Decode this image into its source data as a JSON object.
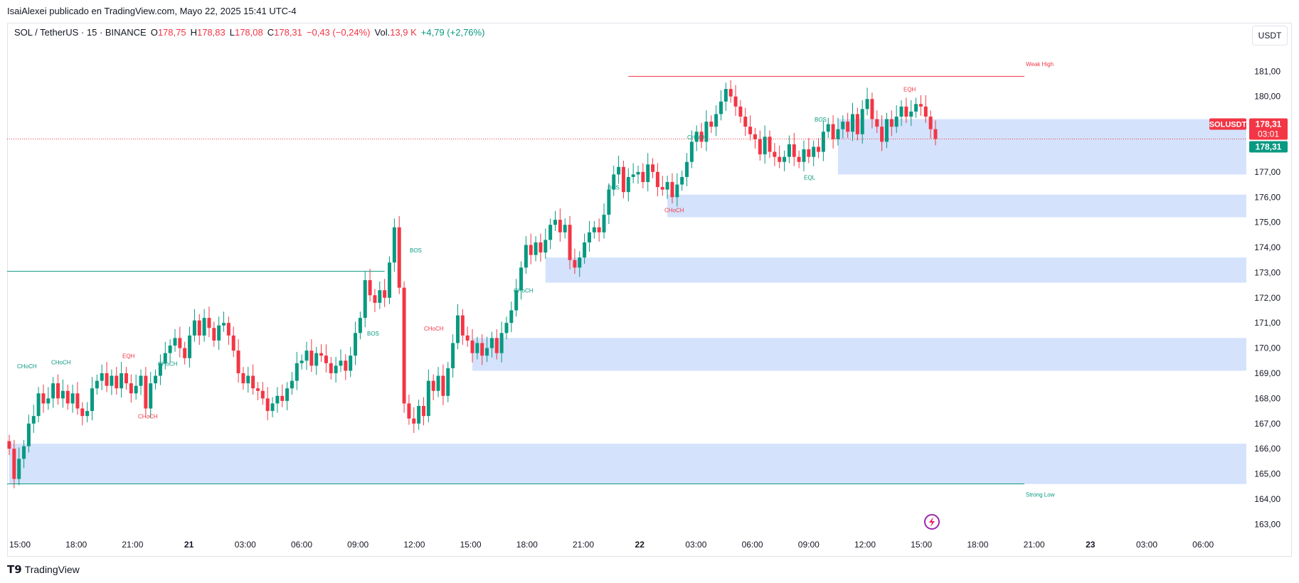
{
  "header": {
    "published_by": "IsaiAlexei publicado en TradingView.com, Mayo 22, 2025 15:41 UTC-4"
  },
  "legend": {
    "symbol": "SOL / TetherUS · 15 · BINANCE",
    "open_label": "O",
    "open": "178,75",
    "high_label": "H",
    "high": "178,83",
    "low_label": "L",
    "low": "178,08",
    "close_label": "C",
    "close": "178,31",
    "change": "−0,43 (−0,24%)",
    "vol_label": "Vol.",
    "vol": "13,9 K",
    "vol_change": "+4,79 (+2,76%)"
  },
  "toolbar": {
    "currency": "USDT"
  },
  "price_tag": {
    "symbol": "SOLUSDT",
    "price": "178,31",
    "countdown": "03:01",
    "last": "178,31"
  },
  "footer": {
    "brand": "TradingView"
  },
  "colors": {
    "up": "#089981",
    "down": "#f23645",
    "zone": "#d4e2fc",
    "grid_text": "#131722",
    "price_line": "#f23645"
  },
  "chart_data": {
    "type": "candlestick",
    "ylim": [
      162.5,
      181.8
    ],
    "y_ticks": [
      "163,00",
      "164,00",
      "165,00",
      "166,00",
      "167,00",
      "168,00",
      "169,00",
      "170,00",
      "171,00",
      "172,00",
      "173,00",
      "174,00",
      "175,00",
      "176,00",
      "177,00",
      "178,00",
      "179,00",
      "180,00",
      "181,00"
    ],
    "x_ticks": [
      "15:00",
      "18:00",
      "21:00",
      "21",
      "03:00",
      "06:00",
      "09:00",
      "12:00",
      "15:00",
      "18:00",
      "21:00",
      "22",
      "03:00",
      "06:00",
      "09:00",
      "12:00",
      "15:00",
      "18:00",
      "21:00",
      "23",
      "03:00",
      "06:00"
    ],
    "x_ticks_bold": [
      "21",
      "22",
      "23"
    ],
    "closes": [
      166.0,
      164.8,
      165.6,
      166.1,
      167.0,
      167.3,
      168.2,
      167.8,
      168.0,
      168.6,
      168.0,
      168.3,
      167.8,
      168.2,
      167.6,
      167.3,
      167.5,
      168.4,
      168.7,
      169.0,
      168.5,
      168.9,
      168.4,
      169.0,
      168.6,
      168.2,
      168.5,
      168.9,
      167.6,
      168.6,
      168.9,
      169.4,
      169.8,
      170.1,
      170.4,
      170.0,
      169.6,
      170.5,
      171.1,
      170.5,
      171.2,
      170.8,
      170.3,
      170.9,
      171.0,
      170.5,
      169.9,
      169.0,
      168.6,
      168.9,
      168.4,
      168.3,
      168.0,
      167.5,
      167.8,
      168.1,
      167.9,
      168.4,
      168.7,
      169.4,
      169.5,
      169.9,
      169.3,
      169.8,
      169.7,
      169.4,
      169.0,
      169.3,
      169.5,
      169.1,
      169.7,
      170.6,
      171.2,
      172.7,
      172.1,
      171.8,
      172.3,
      172.0,
      173.4,
      174.8,
      172.4,
      167.8,
      167.2,
      167.0,
      167.7,
      167.3,
      168.7,
      168.3,
      168.9,
      168.1,
      169.2,
      170.2,
      171.3,
      170.5,
      170.3,
      169.8,
      170.2,
      169.7,
      170.0,
      170.4,
      169.8,
      170.6,
      171.0,
      171.5,
      172.3,
      173.2,
      174.1,
      173.7,
      174.2,
      173.8,
      174.3,
      174.9,
      175.1,
      174.6,
      174.9,
      173.5,
      173.2,
      173.6,
      174.2,
      174.6,
      174.8,
      174.6,
      175.3,
      176.3,
      176.9,
      177.2,
      176.2,
      176.8,
      176.9,
      177.0,
      176.6,
      177.3,
      177.0,
      176.4,
      176.3,
      176.6,
      176.0,
      176.5,
      176.8,
      177.4,
      178.2,
      178.6,
      178.2,
      179.0,
      178.8,
      179.3,
      179.8,
      180.3,
      180.0,
      179.6,
      179.2,
      178.8,
      178.5,
      178.3,
      177.7,
      178.4,
      177.8,
      177.6,
      177.4,
      177.6,
      178.1,
      177.6,
      177.4,
      177.9,
      177.6,
      178.0,
      177.8,
      178.6,
      178.9,
      178.3,
      178.7,
      179.0,
      178.6,
      179.3,
      178.5,
      179.5,
      179.9,
      179.1,
      178.8,
      178.2,
      179.1,
      178.8,
      179.2,
      179.6,
      179.2,
      179.4,
      179.7,
      179.6,
      179.2,
      178.7,
      178.31
    ],
    "annotations": [
      {
        "text": "CHoCH",
        "color": "#089981"
      },
      {
        "text": "CHoCH",
        "color": "#089981"
      },
      {
        "text": "EQH",
        "color": "#f23645"
      },
      {
        "text": "CHoCH",
        "color": "#089981"
      },
      {
        "text": "CHoCH",
        "color": "#f23645"
      },
      {
        "text": "BOS",
        "color": "#089981"
      },
      {
        "text": "BOS",
        "color": "#089981"
      },
      {
        "text": "CHoCH",
        "color": "#f23645"
      },
      {
        "text": "CHoCH",
        "color": "#089981"
      },
      {
        "text": "BOS",
        "color": "#089981"
      },
      {
        "text": "CHoCH",
        "color": "#f23645"
      },
      {
        "text": "CHoCH",
        "color": "#089981"
      },
      {
        "text": "BOS",
        "color": "#089981"
      },
      {
        "text": "EQL",
        "color": "#089981"
      },
      {
        "text": "EQH",
        "color": "#f23645"
      },
      {
        "text": "Weak High",
        "color": "#f23645"
      },
      {
        "text": "Strong Low",
        "color": "#089981"
      }
    ]
  }
}
